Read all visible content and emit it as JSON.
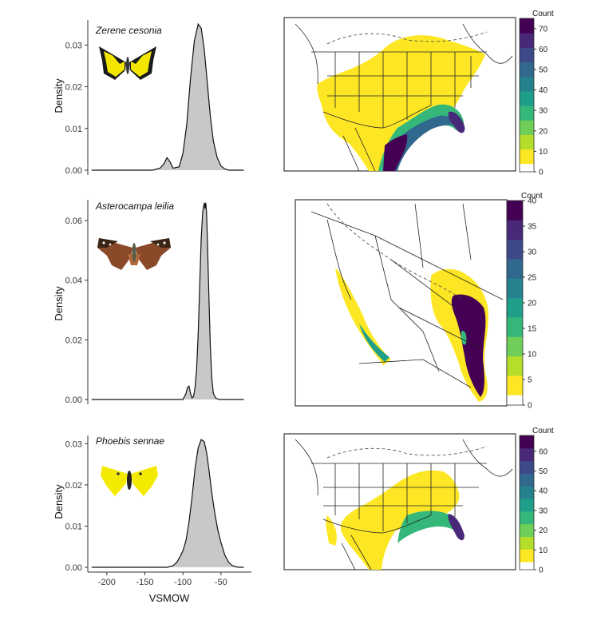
{
  "colors": {
    "density_fill": "#c8c8c8",
    "density_line": "#111111",
    "viridis": [
      "#fde725",
      "#b5de2b",
      "#6ece58",
      "#35b779",
      "#1f9e89",
      "#26828e",
      "#31688e",
      "#3e4989",
      "#482878",
      "#440154"
    ]
  },
  "chart_data": [
    {
      "type": "area",
      "species": "Zerene cesonia",
      "icon": "yellow-black-butterfly-icon",
      "xlabel": "",
      "ylabel": "Density",
      "xlim": [
        -225,
        -10
      ],
      "ylim": [
        0,
        0.036
      ],
      "yticks": [
        "0.00",
        "0.01",
        "0.02",
        "0.03"
      ],
      "yticks_values": [
        0,
        0.01,
        0.02,
        0.03
      ],
      "xticks": [],
      "x": [
        -220,
        -140,
        -130,
        -125,
        -121,
        -117,
        -113,
        -105,
        -100,
        -95,
        -90,
        -85,
        -80,
        -76,
        -72,
        -68,
        -64,
        -60,
        -55,
        -50,
        -45,
        -40,
        -20
      ],
      "y": [
        0,
        0,
        0.0005,
        0.0015,
        0.003,
        0.002,
        0.0005,
        0.0008,
        0.004,
        0.011,
        0.022,
        0.031,
        0.035,
        0.034,
        0.029,
        0.021,
        0.013,
        0.007,
        0.003,
        0.001,
        0.0003,
        0,
        0
      ]
    },
    {
      "type": "area",
      "species": "Asterocampa leilia",
      "icon": "brown-butterfly-icon",
      "xlabel": "",
      "ylabel": "Density",
      "xlim": [
        -225,
        -10
      ],
      "ylim": [
        0,
        0.067
      ],
      "yticks": [
        "0.00",
        "0.02",
        "0.04",
        "0.06"
      ],
      "yticks_values": [
        0,
        0.02,
        0.04,
        0.06
      ],
      "xticks": [],
      "x": [
        -220,
        -100,
        -96,
        -94,
        -92,
        -90,
        -88,
        -86,
        -84,
        -82,
        -80,
        -78,
        -76,
        -74,
        -72,
        -71,
        -70,
        -69,
        -68,
        -66,
        -64,
        -62,
        -60,
        -57,
        -53,
        -20
      ],
      "y": [
        0,
        0,
        0.002,
        0.004,
        0.0045,
        0.002,
        0.0005,
        0.001,
        0.004,
        0.01,
        0.022,
        0.038,
        0.054,
        0.063,
        0.066,
        0.064,
        0.066,
        0.063,
        0.055,
        0.036,
        0.018,
        0.007,
        0.002,
        0.0005,
        0,
        0
      ]
    },
    {
      "type": "area",
      "species": "Phoebis sennae",
      "icon": "yellow-butterfly-icon",
      "xlabel": "VSMOW",
      "ylabel": "Density",
      "xlim": [
        -225,
        -10
      ],
      "ylim": [
        0,
        0.032
      ],
      "yticks": [
        "0.00",
        "0.01",
        "0.02",
        "0.03"
      ],
      "yticks_values": [
        0,
        0.01,
        0.02,
        0.03
      ],
      "xticks": [
        "-200",
        "-150",
        "-100",
        "-50"
      ],
      "xticks_values": [
        -200,
        -150,
        -100,
        -50
      ],
      "x": [
        -220,
        -120,
        -113,
        -108,
        -104,
        -100,
        -96,
        -92,
        -88,
        -84,
        -80,
        -76,
        -72,
        -69,
        -66,
        -62,
        -58,
        -54,
        -50,
        -45,
        -40,
        -35,
        -30,
        -25,
        -20
      ],
      "y": [
        0,
        0,
        0.0004,
        0.0012,
        0.0025,
        0.004,
        0.0065,
        0.011,
        0.017,
        0.024,
        0.029,
        0.031,
        0.0305,
        0.028,
        0.024,
        0.018,
        0.013,
        0.009,
        0.006,
        0.003,
        0.0012,
        0.0004,
        0.0001,
        0,
        0
      ]
    },
    {
      "type": "heatmap",
      "icon": "north-america-range-map",
      "colorbar_title": "Count",
      "colorbar_ticks": [
        "0",
        "10",
        "20",
        "30",
        "40",
        "50",
        "60",
        "70"
      ],
      "colorbar_ticks_values": [
        0,
        10,
        20,
        30,
        40,
        50,
        60,
        70
      ],
      "colorbar_range": [
        0,
        75
      ]
    },
    {
      "type": "heatmap",
      "icon": "mexico-range-map",
      "colorbar_title": "Count",
      "colorbar_ticks": [
        "0",
        "5",
        "10",
        "15",
        "20",
        "25",
        "30",
        "35",
        "40"
      ],
      "colorbar_ticks_values": [
        0,
        5,
        10,
        15,
        20,
        25,
        30,
        35,
        40
      ],
      "colorbar_range": [
        0,
        40
      ]
    },
    {
      "type": "heatmap",
      "icon": "north-america-range-map",
      "colorbar_title": "Count",
      "colorbar_ticks": [
        "0",
        "10",
        "20",
        "30",
        "40",
        "50",
        "60"
      ],
      "colorbar_ticks_values": [
        0,
        10,
        20,
        30,
        40,
        50,
        60
      ],
      "colorbar_range": [
        0,
        68
      ]
    }
  ]
}
